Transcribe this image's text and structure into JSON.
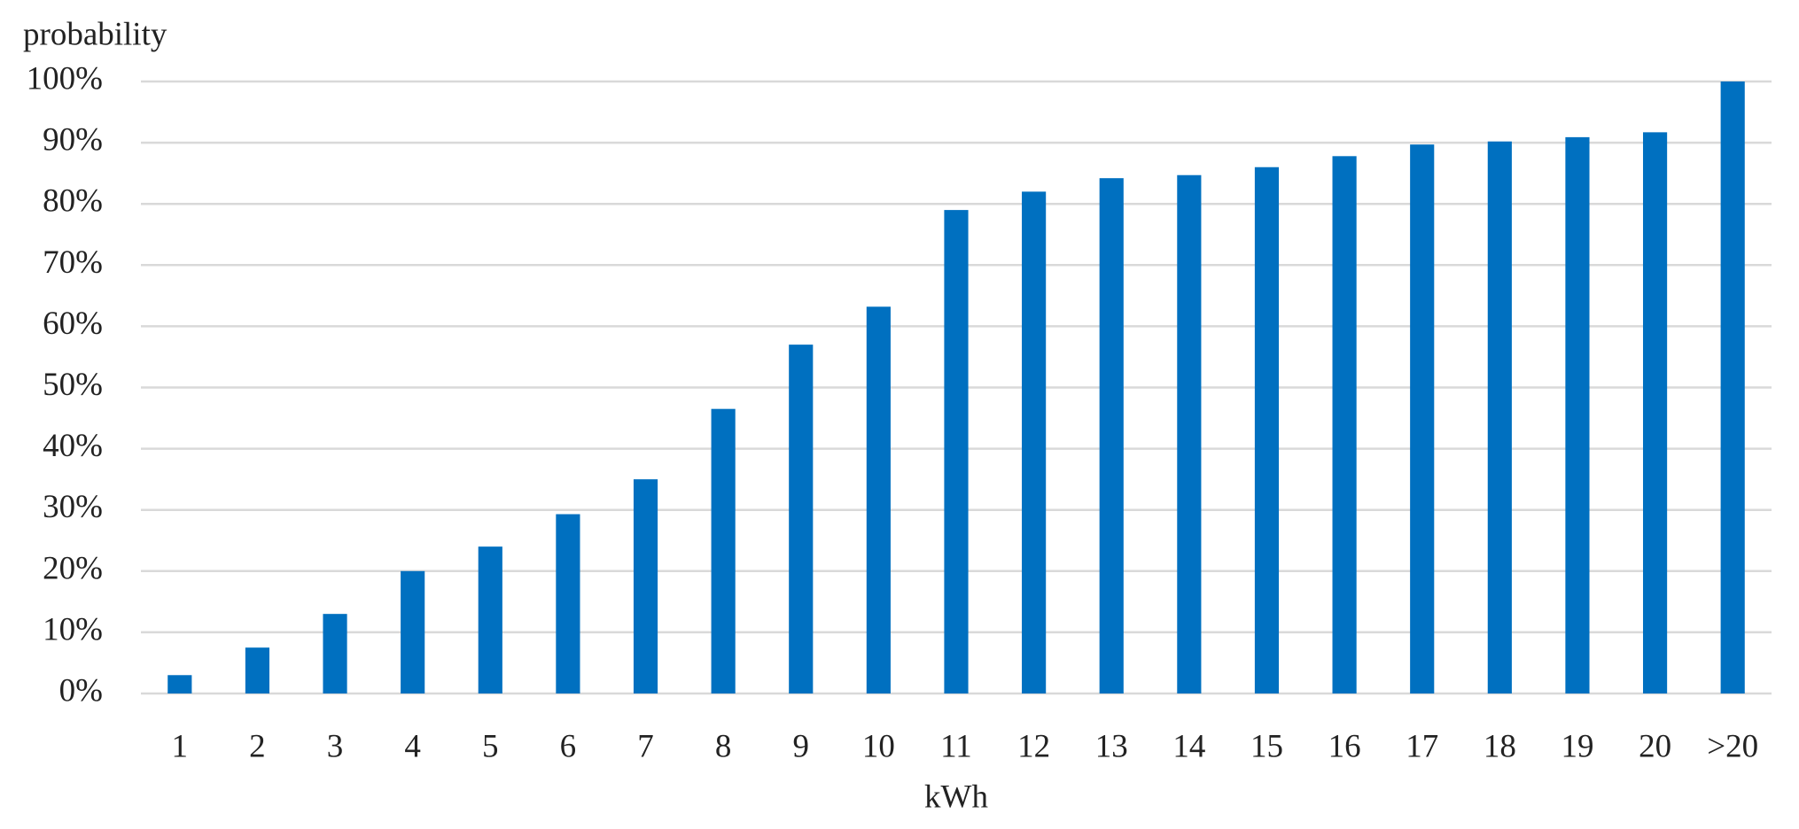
{
  "chart_data": {
    "type": "bar",
    "y_axis_label": "probability",
    "x_axis_label": "kWh",
    "categories": [
      "1",
      "2",
      "3",
      "4",
      "5",
      "6",
      "7",
      "8",
      "9",
      "10",
      "11",
      "12",
      "13",
      "14",
      "15",
      "16",
      "17",
      "18",
      "19",
      "20",
      ">20"
    ],
    "values": [
      3,
      7.5,
      13,
      20,
      24,
      29.3,
      35,
      46.5,
      57,
      63.2,
      79,
      82,
      84.2,
      84.7,
      86,
      87.8,
      89.7,
      90.2,
      90.9,
      91.7,
      100
    ],
    "color": "#0070c0",
    "ylim": [
      0,
      100
    ],
    "yticks": [
      {
        "value": 0,
        "label": "0%"
      },
      {
        "value": 10,
        "label": "10%"
      },
      {
        "value": 20,
        "label": "20%"
      },
      {
        "value": 30,
        "label": "30%"
      },
      {
        "value": 40,
        "label": "40%"
      },
      {
        "value": 50,
        "label": "50%"
      },
      {
        "value": 60,
        "label": "60%"
      },
      {
        "value": 70,
        "label": "70%"
      },
      {
        "value": 80,
        "label": "80%"
      },
      {
        "value": 90,
        "label": "90%"
      },
      {
        "value": 100,
        "label": "100%"
      }
    ],
    "grid": true
  }
}
